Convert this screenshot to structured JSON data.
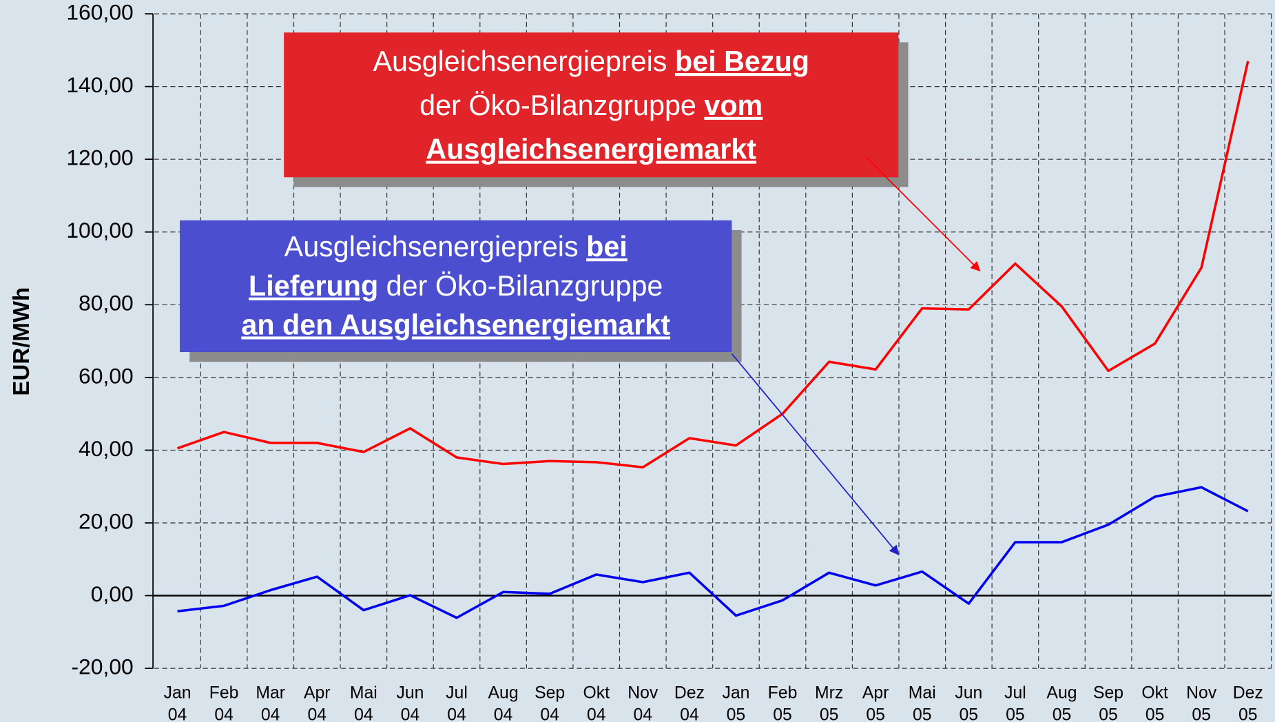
{
  "chart_data": {
    "type": "line",
    "y_label": "EUR/MWh",
    "categories": [
      "Jan 04",
      "Feb 04",
      "Mar 04",
      "Apr 04",
      "Mai 04",
      "Jun 04",
      "Jul 04",
      "Aug 04",
      "Sep 04",
      "Okt 04",
      "Nov 04",
      "Dez 04",
      "Jan 05",
      "Feb 05",
      "Mrz 05",
      "Apr 05",
      "Mai 05",
      "Jun 05",
      "Jul 05",
      "Aug 05",
      "Sep 05",
      "Okt 05",
      "Nov 05",
      "Dez 05"
    ],
    "series": [
      {
        "color": "#ff0000",
        "values": [
          40.5,
          45,
          42,
          42,
          39.5,
          46,
          38,
          36.2,
          37,
          36.7,
          35.3,
          43.3,
          41.3,
          50,
          64.3,
          62.2,
          79,
          78.7,
          91.3,
          79.5,
          61.8,
          69.3,
          90.2,
          147
        ]
      },
      {
        "color": "#0000ee",
        "values": [
          -4.3,
          -2.8,
          1.5,
          5.2,
          -4,
          0.1,
          -6.1,
          1,
          0.5,
          5.8,
          3.7,
          6.3,
          -5.5,
          -1.3,
          6.3,
          2.8,
          6.6,
          -2.2,
          14.7,
          14.7,
          19.5,
          27.2,
          29.8,
          23.2
        ]
      }
    ],
    "ylim": [
      -20,
      160
    ],
    "yticks": [
      {
        "value": -20,
        "label": "-20,00"
      },
      {
        "value": 0,
        "label": "0,00"
      },
      {
        "value": 20,
        "label": "20,00"
      },
      {
        "value": 40,
        "label": "40,00"
      },
      {
        "value": 60,
        "label": "60,00"
      },
      {
        "value": 80,
        "label": "80,00"
      },
      {
        "value": 100,
        "label": "100,00"
      },
      {
        "value": 120,
        "label": "120,00"
      },
      {
        "value": 140,
        "label": "140,00"
      },
      {
        "value": 160,
        "label": "160,00"
      }
    ],
    "grid": true,
    "annotations": [
      {
        "color": "#e0242a",
        "lines": [
          [
            {
              "text": "Ausgleichsenergiepreis "
            },
            {
              "text": "bei Bezug",
              "emphasis": true
            }
          ],
          [
            {
              "text": "der Öko-Bilanzgruppe "
            },
            {
              "text": "vom",
              "emphasis": true
            }
          ],
          [
            {
              "text": "Ausgleichsenergiemarkt",
              "emphasis": true
            }
          ]
        ]
      },
      {
        "color": "#4b4fcf",
        "lines": [
          [
            {
              "text": "Ausgleichsenergiepreis "
            },
            {
              "text": "bei",
              "emphasis": true
            }
          ],
          [
            {
              "text": "Lieferung",
              "emphasis": true
            },
            {
              "text": " der Öko-Bilanzgruppe"
            }
          ],
          [
            {
              "text": "an den Ausgleichsenergiemarkt",
              "emphasis": true
            }
          ]
        ]
      }
    ]
  }
}
